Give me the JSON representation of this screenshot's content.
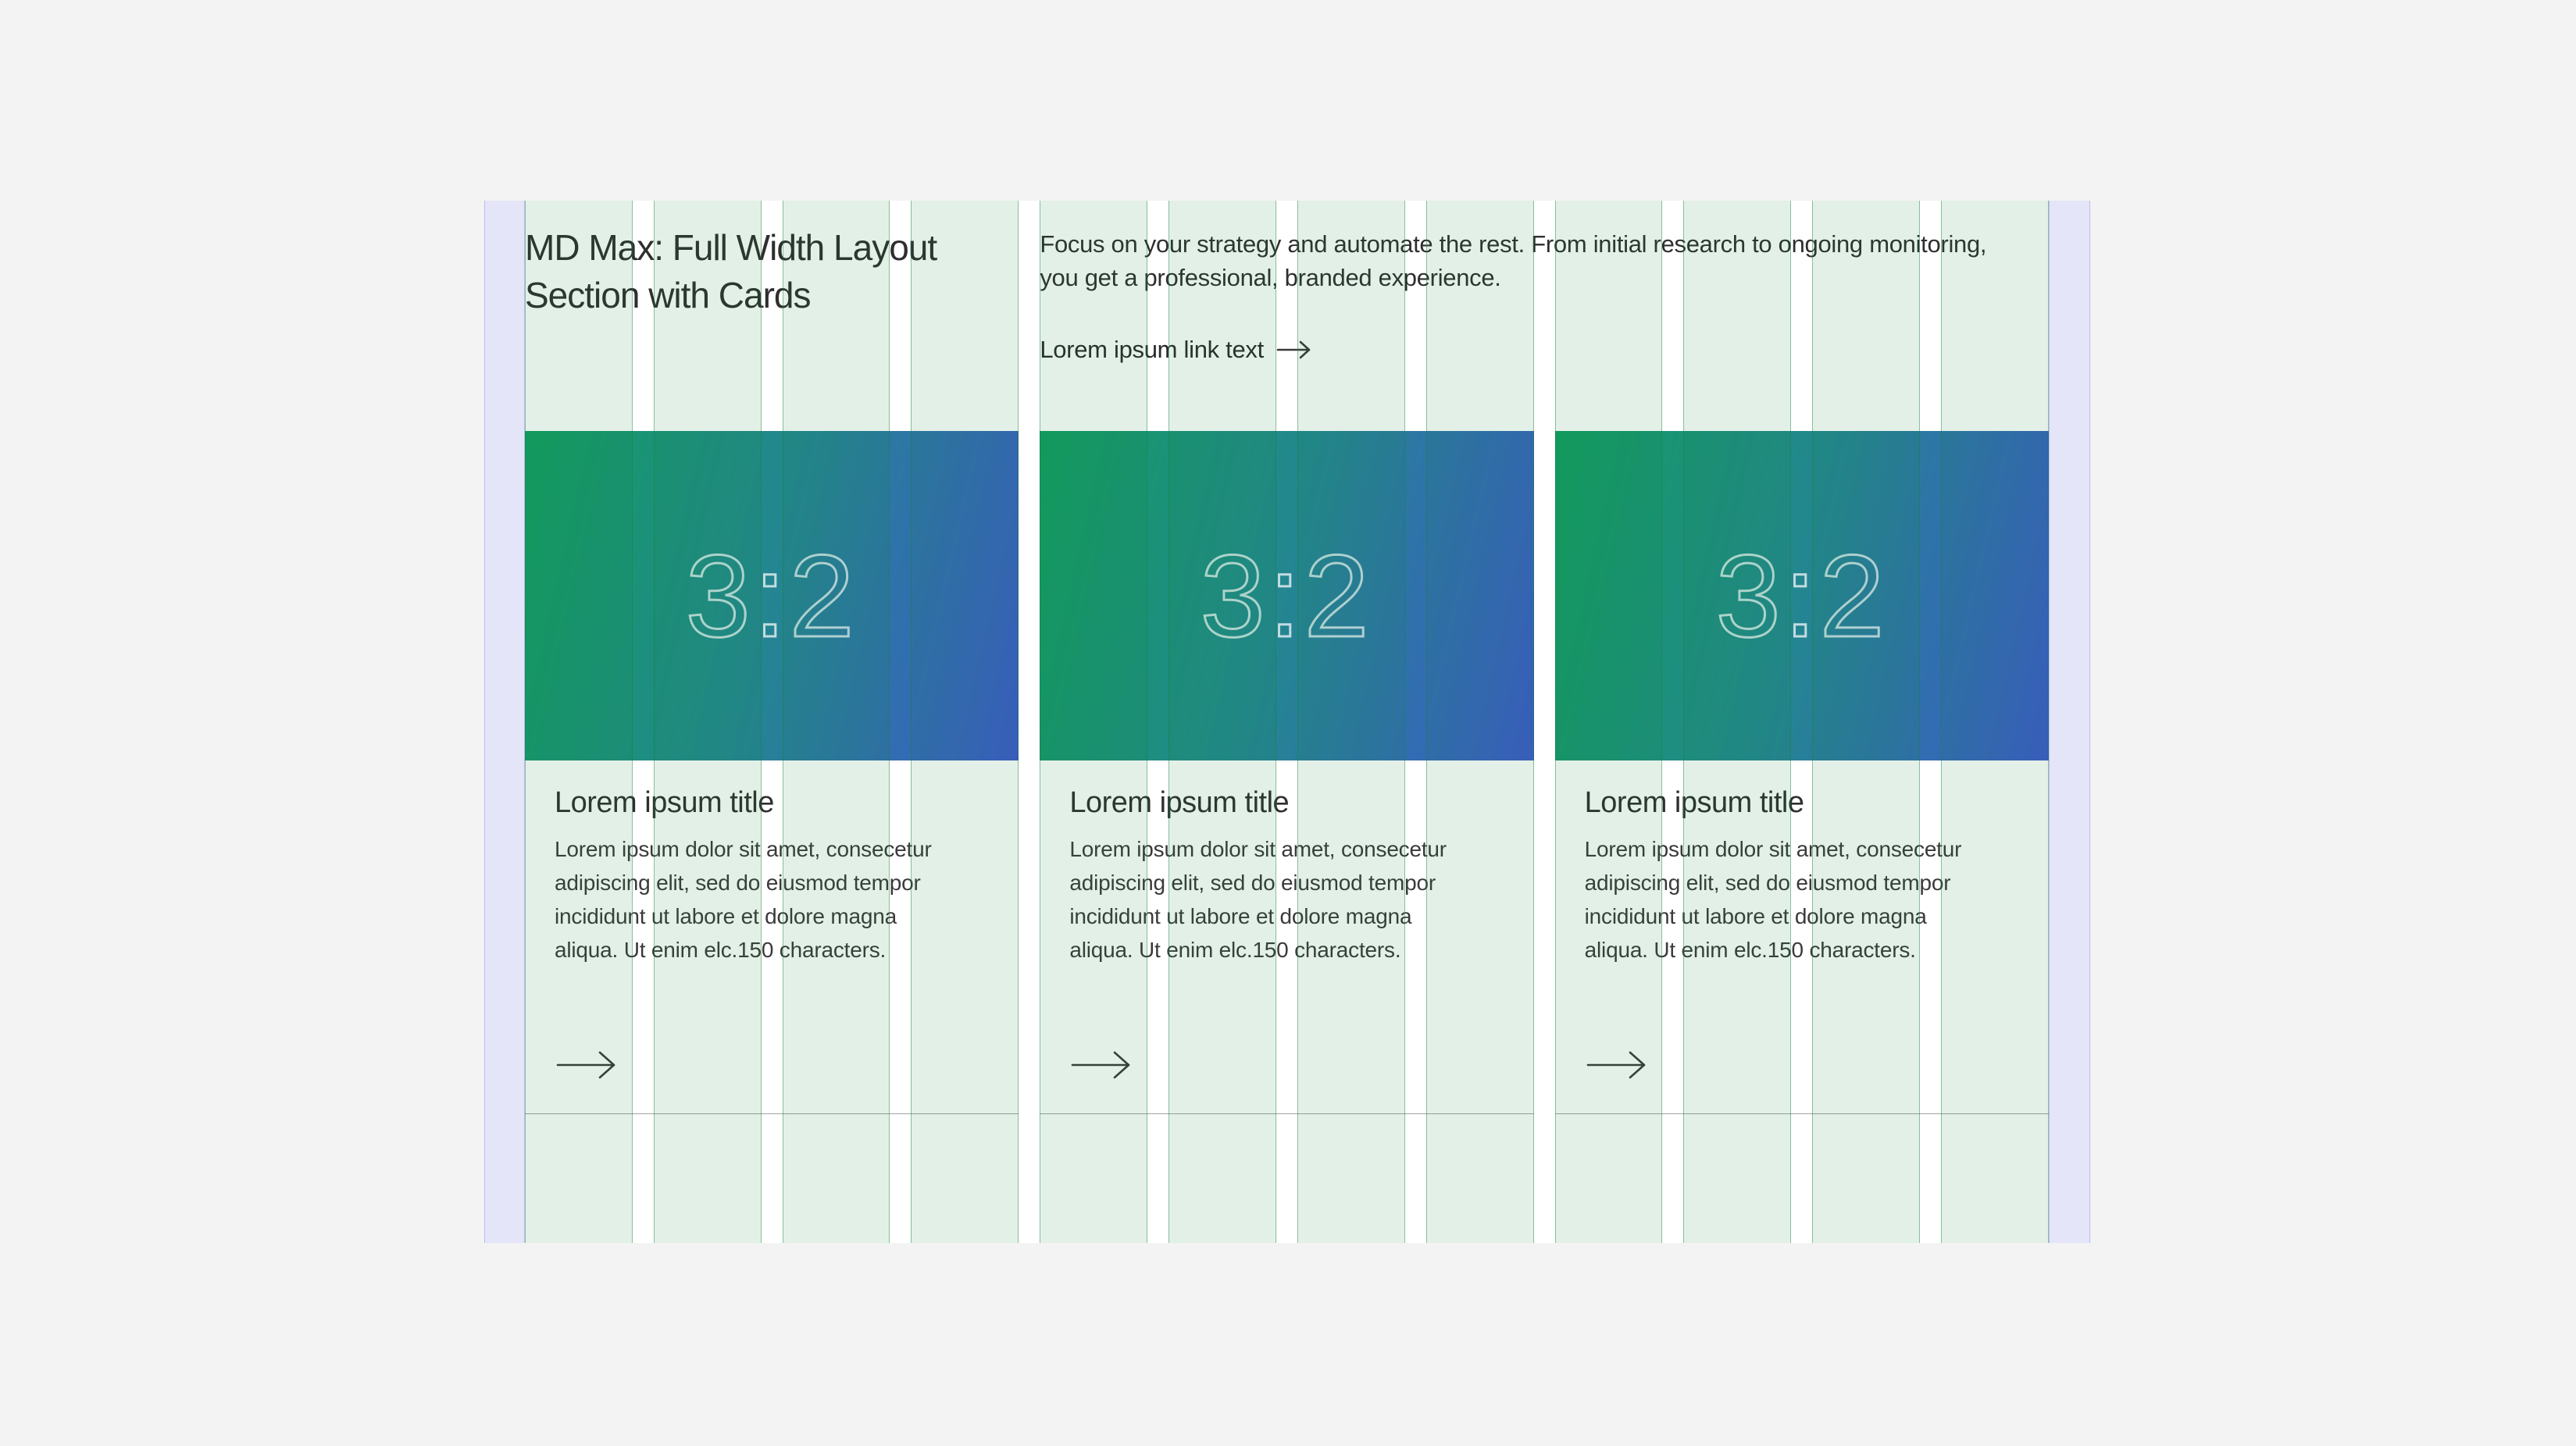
{
  "page": {
    "background": "#f2f3f2",
    "canvas_background": "#ffffff"
  },
  "header": {
    "heading": "MD Max: Full Width Layout Section with Cards",
    "intro": "Focus on your strategy and automate the rest. From initial research to ongoing monitoring, you get a professional, branded experience.",
    "link_label": "Lorem ipsum link text"
  },
  "cards": [
    {
      "ratio_label": "3:2",
      "title": "Lorem ipsum title",
      "body": "Lorem ipsum dolor sit amet, consecetur adipiscing elit, sed do eiusmod tempor incididunt ut labore et dolore magna aliqua. Ut enim elc.150 characters."
    },
    {
      "ratio_label": "3:2",
      "title": "Lorem ipsum title",
      "body": "Lorem ipsum dolor sit amet, consecetur adipiscing elit, sed do eiusmod tempor incididunt ut labore et dolore magna aliqua. Ut enim elc.150 characters."
    },
    {
      "ratio_label": "3:2",
      "title": "Lorem ipsum title",
      "body": "Lorem ipsum dolor sit amet, consecetur adipiscing elit, sed do eiusmod tempor incididunt ut labore et dolore magna aliqua. Ut enim elc.150 characters."
    }
  ],
  "grid_overlay": {
    "column_count": 12,
    "column_fill": "rgba(24,128,62,0.12)",
    "column_line": "rgba(24,128,62,0.45)",
    "margin_fill": "rgba(112,112,224,0.18)",
    "margin_line": "rgba(112,112,224,0.35)"
  },
  "media": {
    "gradient_start": "#129d60",
    "gradient_mid": "#23878f",
    "gradient_end": "#3d59cb"
  }
}
